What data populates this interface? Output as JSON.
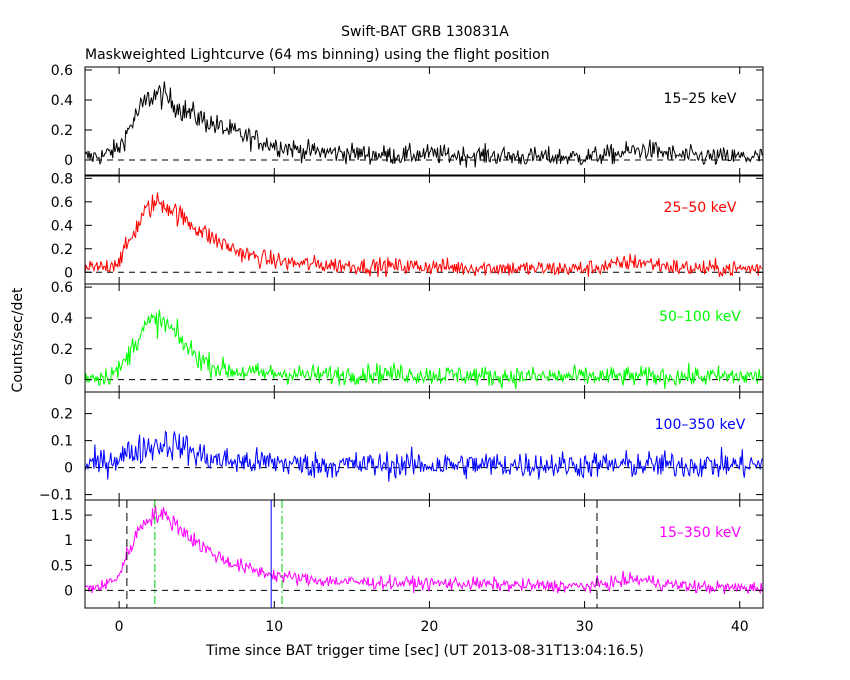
{
  "title": "Swift-BAT GRB 130831A",
  "subtitle": "Maskweighted Lightcurve (64 ms binning) using the flight position",
  "xlabel": "Time since BAT trigger time [sec] (UT 2013-08-31T13:04:16.5)",
  "ylabel": "Counts/sec/det",
  "xlim": [
    -2.2,
    41.5
  ],
  "xticks": [
    0,
    10,
    20,
    30,
    40
  ],
  "xtick_labels": [
    "0",
    "10",
    "20",
    "30",
    "40"
  ],
  "chart_data": [
    {
      "type": "line",
      "band": "15-25 keV",
      "label": "15–25 keV",
      "color": "#000000",
      "ylim": [
        -0.1,
        0.62
      ],
      "yticks": [
        0,
        0.2,
        0.4,
        0.6
      ],
      "ytick_labels": [
        "0",
        "0.2",
        "0.4",
        "0.6"
      ],
      "x": [
        -2,
        -1,
        0,
        0.5,
        1,
        1.5,
        2,
        2.5,
        3,
        3.5,
        4,
        5,
        6,
        7,
        8,
        9,
        10,
        11,
        12,
        14,
        16,
        18,
        20,
        22,
        24,
        26,
        28,
        30,
        32,
        33,
        34,
        35,
        36,
        38,
        40,
        41.5
      ],
      "y": [
        0.02,
        0.03,
        0.08,
        0.18,
        0.28,
        0.36,
        0.42,
        0.44,
        0.42,
        0.38,
        0.34,
        0.29,
        0.24,
        0.2,
        0.16,
        0.13,
        0.1,
        0.08,
        0.06,
        0.05,
        0.04,
        0.03,
        0.04,
        0.03,
        0.03,
        0.02,
        0.02,
        0.02,
        0.04,
        0.06,
        0.07,
        0.05,
        0.03,
        0.02,
        0.02,
        0.02
      ],
      "noise": 0.045
    },
    {
      "type": "line",
      "band": "25-50 keV",
      "label": "25–50 keV",
      "color": "#ff0000",
      "ylim": [
        -0.1,
        0.82
      ],
      "yticks": [
        0,
        0.2,
        0.4,
        0.6,
        0.8
      ],
      "ytick_labels": [
        "0",
        "0.2",
        "0.4",
        "0.6",
        "0.8"
      ],
      "x": [
        -2,
        -1,
        0,
        0.5,
        1,
        1.5,
        2,
        2.5,
        3,
        3.5,
        4,
        5,
        6,
        7,
        8,
        9,
        10,
        11,
        12,
        14,
        16,
        18,
        20,
        22,
        24,
        26,
        28,
        30,
        32,
        33,
        34,
        35,
        36,
        38,
        40,
        41.5
      ],
      "y": [
        0.03,
        0.04,
        0.1,
        0.22,
        0.35,
        0.48,
        0.56,
        0.6,
        0.58,
        0.53,
        0.47,
        0.38,
        0.29,
        0.22,
        0.16,
        0.12,
        0.1,
        0.08,
        0.07,
        0.06,
        0.05,
        0.05,
        0.05,
        0.04,
        0.04,
        0.03,
        0.03,
        0.03,
        0.06,
        0.09,
        0.08,
        0.06,
        0.04,
        0.03,
        0.03,
        0.03
      ],
      "noise": 0.05
    },
    {
      "type": "line",
      "band": "50-100 keV",
      "label": "50–100 keV",
      "color": "#00ff00",
      "ylim": [
        -0.08,
        0.62
      ],
      "yticks": [
        0,
        0.2,
        0.4,
        0.6
      ],
      "ytick_labels": [
        "0",
        "0.2",
        "0.4",
        "0.6"
      ],
      "x": [
        -2,
        -1,
        0,
        0.5,
        1,
        1.5,
        2,
        2.5,
        3,
        3.5,
        4,
        5,
        6,
        7,
        8,
        9,
        10,
        11,
        12,
        14,
        16,
        18,
        20,
        22,
        24,
        26,
        28,
        30,
        32,
        34,
        36,
        38,
        40,
        41.5
      ],
      "y": [
        0.02,
        0.02,
        0.06,
        0.14,
        0.24,
        0.32,
        0.37,
        0.38,
        0.36,
        0.31,
        0.25,
        0.15,
        0.09,
        0.06,
        0.05,
        0.04,
        0.04,
        0.04,
        0.03,
        0.03,
        0.04,
        0.04,
        0.03,
        0.03,
        0.02,
        0.02,
        0.02,
        0.02,
        0.02,
        0.02,
        0.02,
        0.02,
        0.02,
        0.02
      ],
      "noise": 0.045
    },
    {
      "type": "line",
      "band": "100-350 keV",
      "label": "100–350 keV",
      "color": "#0000ff",
      "ylim": [
        -0.12,
        0.28
      ],
      "yticks": [
        -0.1,
        0,
        0.1,
        0.2
      ],
      "ytick_labels": [
        "−0.1",
        "0",
        "0.1",
        "0.2"
      ],
      "x": [
        -2,
        -1,
        0,
        1,
        2,
        3,
        4,
        5,
        6,
        8,
        10,
        12,
        14,
        16,
        18,
        20,
        22,
        24,
        26,
        28,
        30,
        32,
        34,
        36,
        38,
        40,
        41.5
      ],
      "y": [
        0.01,
        0.02,
        0.04,
        0.06,
        0.08,
        0.09,
        0.08,
        0.05,
        0.03,
        0.02,
        0.02,
        0.01,
        0.01,
        0.01,
        0.01,
        0.01,
        0.01,
        0.01,
        0.01,
        0.01,
        0.01,
        0.01,
        0.01,
        0.01,
        0.01,
        0.01,
        0.01
      ],
      "noise": 0.035
    },
    {
      "type": "line",
      "band": "15-350 keV",
      "label": "15–350 keV",
      "color": "#ff00ff",
      "ylim": [
        -0.35,
        1.8
      ],
      "yticks": [
        0,
        0.5,
        1,
        1.5
      ],
      "ytick_labels": [
        "0",
        "0.5",
        "1",
        "1.5"
      ],
      "x": [
        -2,
        -1,
        0,
        0.5,
        1,
        1.5,
        2,
        2.5,
        3,
        3.5,
        4,
        5,
        6,
        7,
        8,
        9,
        10,
        11,
        12,
        14,
        16,
        18,
        20,
        22,
        24,
        26,
        28,
        30,
        32,
        33,
        34,
        35,
        36,
        38,
        40,
        41.5
      ],
      "y": [
        0.05,
        0.08,
        0.3,
        0.7,
        1.05,
        1.32,
        1.48,
        1.52,
        1.47,
        1.36,
        1.22,
        0.96,
        0.74,
        0.58,
        0.46,
        0.38,
        0.31,
        0.26,
        0.22,
        0.18,
        0.16,
        0.15,
        0.14,
        0.14,
        0.12,
        0.1,
        0.09,
        0.08,
        0.16,
        0.22,
        0.2,
        0.14,
        0.1,
        0.06,
        0.05,
        0.05
      ],
      "noise": 0.09,
      "vlines": [
        {
          "x": 0.5,
          "style": "dashed",
          "color": "#000000"
        },
        {
          "x": 2.3,
          "style": "dashdot",
          "color": "#00cc00"
        },
        {
          "x": 9.8,
          "style": "solid",
          "color": "#0000ff"
        },
        {
          "x": 10.5,
          "style": "dashdot",
          "color": "#00cc00"
        },
        {
          "x": 30.8,
          "style": "dashed",
          "color": "#000000"
        }
      ]
    }
  ]
}
